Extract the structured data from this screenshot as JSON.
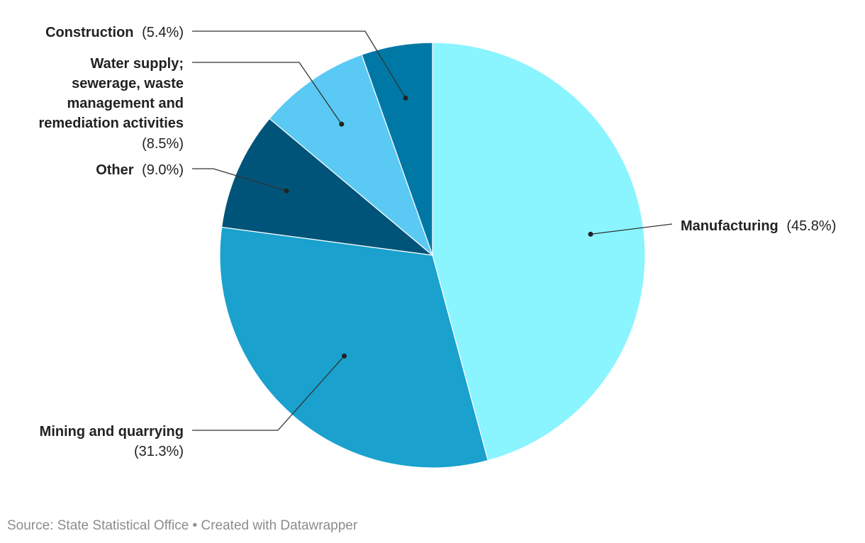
{
  "chart_data": {
    "type": "pie",
    "start_angle_deg": 0,
    "direction": "clockwise",
    "slices": [
      {
        "label": "Manufacturing",
        "value": 45.8,
        "pct_label": "(45.8%)",
        "color": "#8AF4FF"
      },
      {
        "label": "Mining and quarrying",
        "value": 31.3,
        "pct_label": "(31.3%)",
        "color": "#1AA1CE"
      },
      {
        "label": "Other",
        "value": 9.0,
        "pct_label": "(9.0%)",
        "color": "#00547A"
      },
      {
        "label": "Water supply; sewerage, waste management and remediation activities",
        "value": 8.5,
        "pct_label": "(8.5%)",
        "color": "#5AC9F4"
      },
      {
        "label": "Construction",
        "value": 5.4,
        "pct_label": "(5.4%)",
        "color": "#0078A6"
      }
    ]
  },
  "footer": {
    "text": "Source: State Statistical Office • Created with Datawrapper"
  }
}
